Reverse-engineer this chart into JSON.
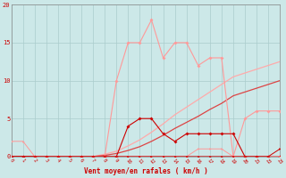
{
  "x": [
    0,
    1,
    2,
    3,
    4,
    5,
    6,
    7,
    8,
    9,
    10,
    11,
    12,
    13,
    14,
    15,
    16,
    17,
    18,
    19,
    20,
    21,
    22,
    23
  ],
  "line_dark_bottom": [
    0,
    0,
    0,
    0,
    0,
    0,
    0,
    0,
    0,
    0,
    0,
    0,
    0,
    0,
    0,
    0,
    0,
    0,
    0,
    0,
    0,
    0,
    0,
    1
  ],
  "line_pink_bottom": [
    2,
    2,
    0,
    0,
    0,
    0,
    0,
    0,
    0,
    0,
    0,
    0,
    0,
    0,
    0,
    0,
    1,
    1,
    1,
    0,
    0,
    0,
    0,
    0
  ],
  "line_dark_mid": [
    0,
    0,
    0,
    0,
    0,
    0,
    0,
    0,
    0,
    0,
    4,
    5,
    5,
    3,
    2,
    3,
    3,
    3,
    3,
    3,
    0,
    0,
    0,
    0
  ],
  "line_pink_high": [
    0,
    0,
    0,
    0,
    0,
    0,
    0,
    0,
    0,
    10,
    15,
    15,
    18,
    13,
    15,
    15,
    12,
    13,
    13,
    0,
    5,
    6,
    6,
    6
  ],
  "line_diag_light": [
    0,
    0,
    0,
    0,
    0,
    0,
    0,
    0,
    0.3,
    0.7,
    1.4,
    2.2,
    3.2,
    4.3,
    5.5,
    6.5,
    7.5,
    8.5,
    9.5,
    10.5,
    11,
    11.5,
    12,
    12.5
  ],
  "line_diag_dark": [
    0,
    0,
    0,
    0,
    0,
    0,
    0,
    0,
    0.15,
    0.4,
    0.8,
    1.3,
    2.0,
    2.8,
    3.7,
    4.5,
    5.3,
    6.2,
    7.0,
    8.0,
    8.5,
    9.0,
    9.5,
    10.0
  ],
  "bg_color": "#cce8e8",
  "grid_color": "#aacccc",
  "col_dark": "#cc0000",
  "col_pink": "#ff9999",
  "col_diag_light": "#ffaaaa",
  "col_diag_dark": "#dd4444",
  "xlabel": "Vent moyen/en rafales ( km/h )",
  "ylim": [
    0,
    20
  ],
  "xlim": [
    0,
    23
  ]
}
